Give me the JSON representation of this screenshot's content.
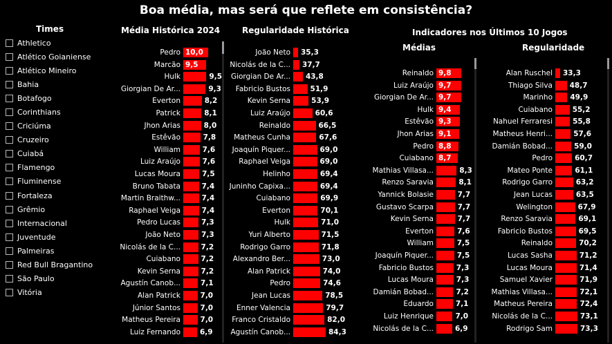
{
  "title": "Boa média, mas será que reflete em consistência?",
  "teams": {
    "header": "Times",
    "items": [
      "Athletico",
      "Atlético Goianiense",
      "Atlético Mineiro",
      "Bahia",
      "Botafogo",
      "Corinthians",
      "Criciúma",
      "Cruzeiro",
      "Cuiabá",
      "Flamengo",
      "Fluminense",
      "Fortaleza",
      "Grêmio",
      "Internacional",
      "Juventude",
      "Palmeiras",
      "Red Bull Bragantino",
      "São Paulo",
      "Vitória"
    ]
  },
  "last10_header": "Indicadores nos Últimos 10 Jogos",
  "chart_data": [
    {
      "type": "bar",
      "title": "Média Histórica 2024",
      "categories": [
        "Pedro",
        "Marcão",
        "Hulk",
        "Giorgian De Ar...",
        "Everton",
        "Patrick",
        "Jhon Arias",
        "Estêvão",
        "William",
        "Luiz Araújo",
        "Lucas Moura",
        "Bruno Tabata",
        "Martin Braithw...",
        "Raphael Veiga",
        "Pedro Lucas",
        "João Neto",
        "Nicolás de la C...",
        "Cuiabano",
        "Kevin Serna",
        "Agustín Canob...",
        "Alan Patrick",
        "Júnior Santos",
        "Matheus Pereira",
        "Luiz Fernando"
      ],
      "values": [
        10.0,
        9.5,
        9.5,
        9.3,
        8.2,
        8.1,
        8.0,
        7.8,
        7.6,
        7.6,
        7.5,
        7.4,
        7.4,
        7.4,
        7.3,
        7.3,
        7.2,
        7.2,
        7.2,
        7.1,
        7.0,
        7.0,
        7.0,
        6.9
      ],
      "labels": [
        "10,0",
        "9,5",
        "9,5",
        "9,3",
        "8,2",
        "8,1",
        "8,0",
        "7,8",
        "7,6",
        "7,6",
        "7,5",
        "7,4",
        "7,4",
        "7,4",
        "7,3",
        "7,3",
        "7,2",
        "7,2",
        "7,2",
        "7,1",
        "7,0",
        "7,0",
        "7,0",
        "6,9"
      ]
    },
    {
      "type": "bar",
      "title": "Regularidade Histórica",
      "categories": [
        "João Neto",
        "Nicolás de la C...",
        "Giorgian De Ar...",
        "Fabricio Bustos",
        "Kevin Serna",
        "Luiz Araújo",
        "Reinaldo",
        "Matheus Cunha",
        "Joaquín Piquer...",
        "Raphael Veiga",
        "Helinho",
        "Juninho Capixa...",
        "Cuiabano",
        "Everton",
        "Hulk",
        "Yuri Alberto",
        "Rodrigo Garro",
        "Alexandro Ber...",
        "Alan Patrick",
        "Pedro",
        "Jean Lucas",
        "Enner Valencia",
        "Franco Cristaldo",
        "Agustín Canob..."
      ],
      "values": [
        35.3,
        37.7,
        43.8,
        51.9,
        53.9,
        60.6,
        66.5,
        67.6,
        69.0,
        69.0,
        69.4,
        69.4,
        69.9,
        70.1,
        71.0,
        71.5,
        71.8,
        73.0,
        74.0,
        74.6,
        78.5,
        79.7,
        82.0,
        84.3
      ],
      "labels": [
        "35,3",
        "37,7",
        "43,8",
        "51,9",
        "53,9",
        "60,6",
        "66,5",
        "67,6",
        "69,0",
        "69,0",
        "69,4",
        "69,4",
        "69,9",
        "70,1",
        "71,0",
        "71,5",
        "71,8",
        "73,0",
        "74,0",
        "74,6",
        "78,5",
        "79,7",
        "82,0",
        "84,3"
      ]
    },
    {
      "type": "bar",
      "title": "Médias",
      "categories": [
        "Reinaldo",
        "Luiz Araújo",
        "Giorgian De Ar...",
        "Hulk",
        "Estêvão",
        "Jhon Arias",
        "Pedro",
        "Cuiabano",
        "Mathias Villasa...",
        "Renzo Saravia",
        "Yannick Bolasie",
        "Gustavo Scarpa",
        "Kevin Serna",
        "Everton",
        "William",
        "Joaquín Piquer...",
        "Fabricio Bustos",
        "Lucas Moura",
        "Damián Bobad...",
        "Eduardo",
        "Luiz Henrique",
        "Nicolás de la C..."
      ],
      "values": [
        9.8,
        9.7,
        9.7,
        9.4,
        9.3,
        9.1,
        8.8,
        8.7,
        8.3,
        8.1,
        7.7,
        7.7,
        7.7,
        7.6,
        7.5,
        7.5,
        7.3,
        7.3,
        7.2,
        7.1,
        7.0,
        6.9
      ],
      "labels": [
        "9,8",
        "9,7",
        "9,7",
        "9,4",
        "9,3",
        "9,1",
        "8,8",
        "8,7",
        "8,3",
        "8,1",
        "7,7",
        "7,7",
        "7,7",
        "7,6",
        "7,5",
        "7,5",
        "7,3",
        "7,3",
        "7,2",
        "7,1",
        "7,0",
        "6,9"
      ]
    },
    {
      "type": "bar",
      "title": "Regularidade",
      "categories": [
        "Alan Ruschel",
        "Thiago Silva",
        "Marinho",
        "Cuiabano",
        "Nahuel Ferraresi",
        "Matheus Henri...",
        "Damián Bobad...",
        "Pedro",
        "Mateo Ponte",
        "Rodrigo Garro",
        "Jean Lucas",
        "Welington",
        "Renzo Saravia",
        "Fabricio Bustos",
        "Reinaldo",
        "Lucas Sasha",
        "Lucas Moura",
        "Samuel Xavier",
        "Mathias Villasa...",
        "Matheus Pereira",
        "Nicolás de la C...",
        "Rodrigo Sam"
      ],
      "values": [
        33.3,
        48.7,
        49.9,
        55.2,
        55.8,
        57.6,
        59.0,
        60.7,
        61.1,
        63.2,
        63.5,
        67.9,
        69.1,
        69.5,
        70.2,
        71.2,
        71.4,
        71.9,
        72.1,
        72.4,
        73.1,
        73.3
      ],
      "labels": [
        "33,3",
        "48,7",
        "49,9",
        "55,2",
        "55,8",
        "57,6",
        "59,0",
        "60,7",
        "61,1",
        "63,2",
        "63,5",
        "67,9",
        "69,1",
        "69,5",
        "70,2",
        "71,2",
        "71,4",
        "71,9",
        "72,1",
        "72,4",
        "73,1",
        "73,3"
      ]
    }
  ]
}
